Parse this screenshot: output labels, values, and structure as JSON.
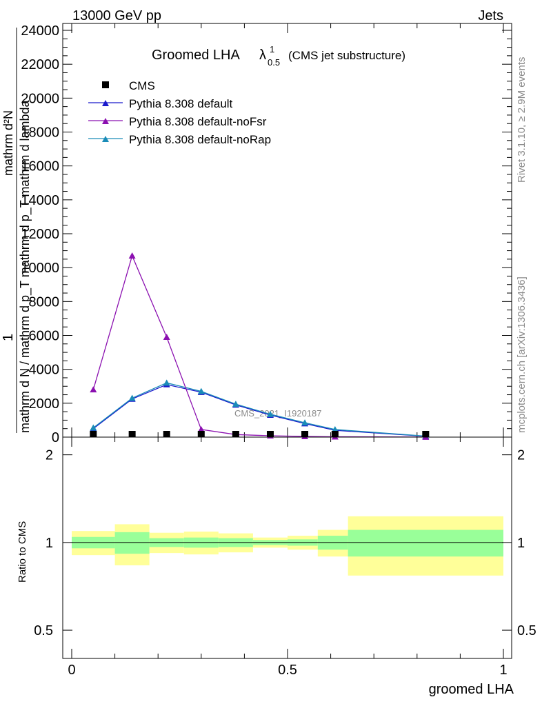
{
  "header": {
    "left": "13000 GeV pp",
    "right": "Jets",
    "side_top": "Rivet 3.1.10, ≥ 2.9M events",
    "side_bottom": "mcplots.cern.ch [arXiv:1306.3436]",
    "watermark": "CMS_2021_I1920187"
  },
  "chart_data": [
    {
      "type": "line",
      "title_main": "Groomed LHA",
      "title_lambda": "λ",
      "title_sup": "1",
      "title_sub": "0.5",
      "title_note": "(CMS jet substructure)",
      "ylabel_lines": [
        "mathrm d²N",
        "1",
        "mathrm d N / mathrm d p_T mathrm d p_T mathrm d lambda"
      ],
      "xlim": [
        0,
        1
      ],
      "ylim": [
        0,
        24000
      ],
      "yticks": [
        0,
        2000,
        4000,
        6000,
        8000,
        10000,
        12000,
        14000,
        16000,
        18000,
        20000,
        22000,
        24000
      ],
      "ytick_labels": [
        "0",
        "2000",
        "4000",
        "6000",
        "8000",
        "10000",
        "12000",
        "14000",
        "16000",
        "18000",
        "20000",
        "22000",
        "24000"
      ],
      "legend_position": "top-left",
      "series": [
        {
          "name": "CMS",
          "marker": "square",
          "color": "#000000",
          "x": [
            0.05,
            0.14,
            0.22,
            0.3,
            0.38,
            0.46,
            0.54,
            0.61,
            0.82
          ],
          "y": [
            0,
            0,
            0,
            0,
            0,
            0,
            0,
            0,
            0
          ]
        },
        {
          "name": "Pythia 8.308 default",
          "marker": "triangle",
          "color": "#1a1acc",
          "x": [
            0.05,
            0.14,
            0.22,
            0.3,
            0.38,
            0.46,
            0.54,
            0.61,
            0.82
          ],
          "y": [
            500,
            2250,
            3100,
            2650,
            1900,
            1300,
            800,
            400,
            50
          ]
        },
        {
          "name": "Pythia 8.308 default-noFsr",
          "marker": "triangle",
          "color": "#8b10b0",
          "x": [
            0.05,
            0.14,
            0.22,
            0.3,
            0.38,
            0.46,
            0.54,
            0.61,
            0.82
          ],
          "y": [
            2800,
            10700,
            5900,
            450,
            150,
            80,
            40,
            20,
            5
          ]
        },
        {
          "name": "Pythia 8.308 default-noRap",
          "marker": "triangle",
          "color": "#1a8cb8",
          "x": [
            0.05,
            0.14,
            0.22,
            0.3,
            0.38,
            0.46,
            0.54,
            0.61,
            0.82
          ],
          "y": [
            550,
            2300,
            3200,
            2700,
            1950,
            1350,
            850,
            450,
            60
          ]
        }
      ]
    },
    {
      "type": "area",
      "ylabel": "Ratio to CMS",
      "xlabel": "groomed LHA",
      "xlim": [
        0,
        1
      ],
      "ylim": [
        0.4,
        2.3
      ],
      "yscale": "log",
      "yticks": [
        0.5,
        1,
        2
      ],
      "ytick_labels": [
        "0.5",
        "1",
        "2"
      ],
      "xticks": [
        0,
        0.5,
        1
      ],
      "xtick_labels": [
        "0",
        "0.5",
        "1"
      ],
      "reference_line": 1,
      "bins": [
        {
          "x0": 0.0,
          "x1": 0.1,
          "inner": [
            0.955,
            1.045
          ],
          "outer": [
            0.905,
            1.095
          ]
        },
        {
          "x0": 0.1,
          "x1": 0.18,
          "inner": [
            0.915,
            1.085
          ],
          "outer": [
            0.835,
            1.155
          ]
        },
        {
          "x0": 0.18,
          "x1": 0.26,
          "inner": [
            0.965,
            1.035
          ],
          "outer": [
            0.92,
            1.08
          ]
        },
        {
          "x0": 0.26,
          "x1": 0.34,
          "inner": [
            0.96,
            1.04
          ],
          "outer": [
            0.91,
            1.09
          ]
        },
        {
          "x0": 0.34,
          "x1": 0.42,
          "inner": [
            0.965,
            1.035
          ],
          "outer": [
            0.925,
            1.075
          ]
        },
        {
          "x0": 0.42,
          "x1": 0.5,
          "inner": [
            0.98,
            1.02
          ],
          "outer": [
            0.96,
            1.04
          ]
        },
        {
          "x0": 0.5,
          "x1": 0.57,
          "inner": [
            0.975,
            1.025
          ],
          "outer": [
            0.945,
            1.055
          ]
        },
        {
          "x0": 0.57,
          "x1": 0.64,
          "inner": [
            0.945,
            1.055
          ],
          "outer": [
            0.895,
            1.105
          ]
        },
        {
          "x0": 0.64,
          "x1": 1.0,
          "inner": [
            0.895,
            1.105
          ],
          "outer": [
            0.77,
            1.23
          ]
        }
      ],
      "colors": {
        "inner": "#99ff99",
        "outer": "#ffff99"
      }
    }
  ]
}
